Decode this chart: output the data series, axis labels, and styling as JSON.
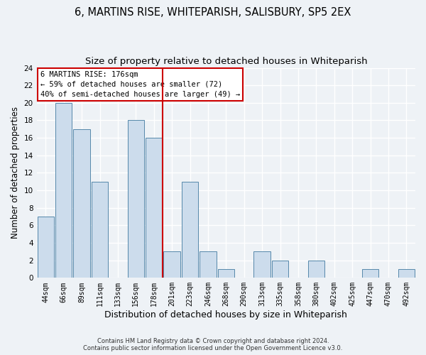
{
  "title": "6, MARTINS RISE, WHITEPARISH, SALISBURY, SP5 2EX",
  "subtitle": "Size of property relative to detached houses in Whiteparish",
  "xlabel": "Distribution of detached houses by size in Whiteparish",
  "ylabel": "Number of detached properties",
  "bin_labels": [
    "44sqm",
    "66sqm",
    "89sqm",
    "111sqm",
    "133sqm",
    "156sqm",
    "178sqm",
    "201sqm",
    "223sqm",
    "246sqm",
    "268sqm",
    "290sqm",
    "313sqm",
    "335sqm",
    "358sqm",
    "380sqm",
    "402sqm",
    "425sqm",
    "447sqm",
    "470sqm",
    "492sqm"
  ],
  "bar_heights": [
    7,
    20,
    17,
    11,
    0,
    18,
    16,
    3,
    11,
    3,
    1,
    0,
    3,
    2,
    0,
    2,
    0,
    0,
    1,
    0,
    1
  ],
  "bar_color": "#ccdcec",
  "bar_edge_color": "#5588aa",
  "vline_color": "#cc0000",
  "vline_pos": 6.5,
  "ylim": [
    0,
    24
  ],
  "yticks": [
    0,
    2,
    4,
    6,
    8,
    10,
    12,
    14,
    16,
    18,
    20,
    22,
    24
  ],
  "annotation_line1": "6 MARTINS RISE: 176sqm",
  "annotation_line2": "← 59% of detached houses are smaller (72)",
  "annotation_line3": "40% of semi-detached houses are larger (49) →",
  "annotation_box_edge_color": "#cc0000",
  "footer1": "Contains HM Land Registry data © Crown copyright and database right 2024.",
  "footer2": "Contains public sector information licensed under the Open Government Licence v3.0.",
  "bg_color": "#eef2f6",
  "grid_color": "#ffffff",
  "title_fontsize": 10.5,
  "subtitle_fontsize": 9.5,
  "xlabel_fontsize": 9,
  "ylabel_fontsize": 8.5,
  "tick_fontsize": 7,
  "annotation_fontsize": 7.5,
  "footer_fontsize": 6
}
